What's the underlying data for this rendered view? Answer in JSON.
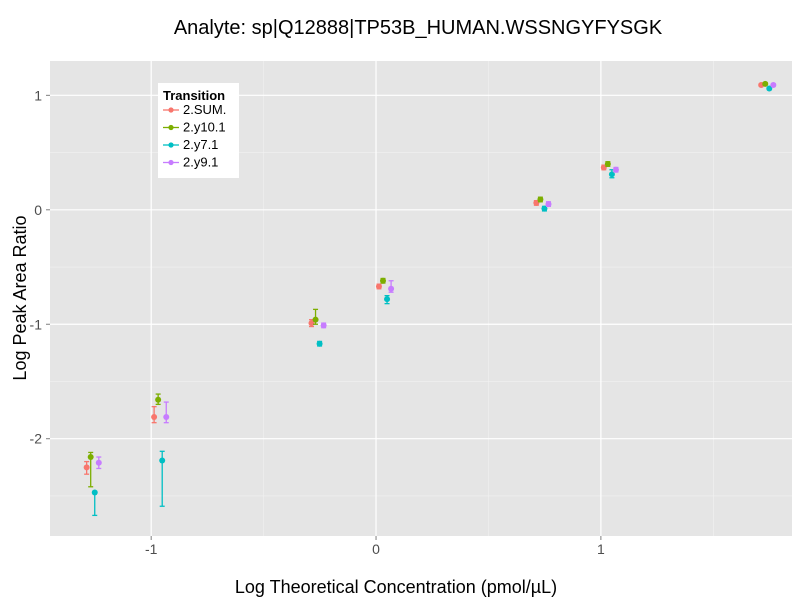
{
  "chart_data": {
    "type": "scatter",
    "title": "Analyte: sp|Q12888|TP53B_HUMAN.WSSNGYFYSGK",
    "xlabel": "Log Theoretical Concentration (pmol/µL)",
    "ylabel": "Log Peak Area Ratio",
    "xlim": [
      -1.45,
      1.85
    ],
    "ylim": [
      -2.85,
      1.3
    ],
    "x_ticks": [
      -1,
      0,
      1
    ],
    "x_tick_labels": [
      "-1",
      "0",
      "1"
    ],
    "y_ticks": [
      -2,
      -1,
      0,
      1
    ],
    "y_tick_labels": [
      "-2",
      "-1",
      "0",
      "1"
    ],
    "grid": true,
    "legend": {
      "title": "Transition",
      "position": "top-left"
    },
    "x": [
      -1.26,
      -0.96,
      -0.26,
      0.04,
      0.74,
      1.04,
      1.74
    ],
    "dodge": 0.018,
    "series": [
      {
        "name": "2.SUM.",
        "color": "#F8766D",
        "values": [
          -2.25,
          -1.81,
          -0.99,
          -0.67,
          0.06,
          0.37,
          1.09
        ],
        "err": [
          [
            -2.31,
            -2.2
          ],
          [
            -1.86,
            -1.72
          ],
          [
            -1.02,
            -0.96
          ],
          [
            -0.69,
            -0.65
          ],
          [
            0.04,
            0.08
          ],
          [
            0.35,
            0.39
          ],
          [
            1.08,
            1.1
          ]
        ]
      },
      {
        "name": "2.y10.1",
        "color": "#7CAE00",
        "values": [
          -2.16,
          -1.66,
          -0.96,
          -0.62,
          0.09,
          0.4,
          1.1
        ],
        "err": [
          [
            -2.42,
            -2.12
          ],
          [
            -1.7,
            -1.61
          ],
          [
            -1.0,
            -0.87
          ],
          [
            -0.64,
            -0.6
          ],
          [
            0.07,
            0.11
          ],
          [
            0.38,
            0.42
          ],
          [
            1.09,
            1.11
          ]
        ]
      },
      {
        "name": "2.y7.1",
        "color": "#00BFC4",
        "values": [
          -2.47,
          -2.19,
          -1.17,
          -0.78,
          0.01,
          0.31,
          1.06
        ],
        "err": [
          [
            -2.67,
            -2.46
          ],
          [
            -2.59,
            -2.11
          ],
          [
            -1.19,
            -1.15
          ],
          [
            -0.82,
            -0.75
          ],
          [
            -0.01,
            0.03
          ],
          [
            0.28,
            0.35
          ],
          [
            1.05,
            1.07
          ]
        ]
      },
      {
        "name": "2.y9.1",
        "color": "#C77CFF",
        "values": [
          -2.21,
          -1.81,
          -1.01,
          -0.69,
          0.05,
          0.35,
          1.09
        ],
        "err": [
          [
            -2.26,
            -2.16
          ],
          [
            -1.86,
            -1.68
          ],
          [
            -1.03,
            -0.99
          ],
          [
            -0.72,
            -0.62
          ],
          [
            0.03,
            0.07
          ],
          [
            0.33,
            0.37
          ],
          [
            1.08,
            1.1
          ]
        ]
      }
    ]
  }
}
